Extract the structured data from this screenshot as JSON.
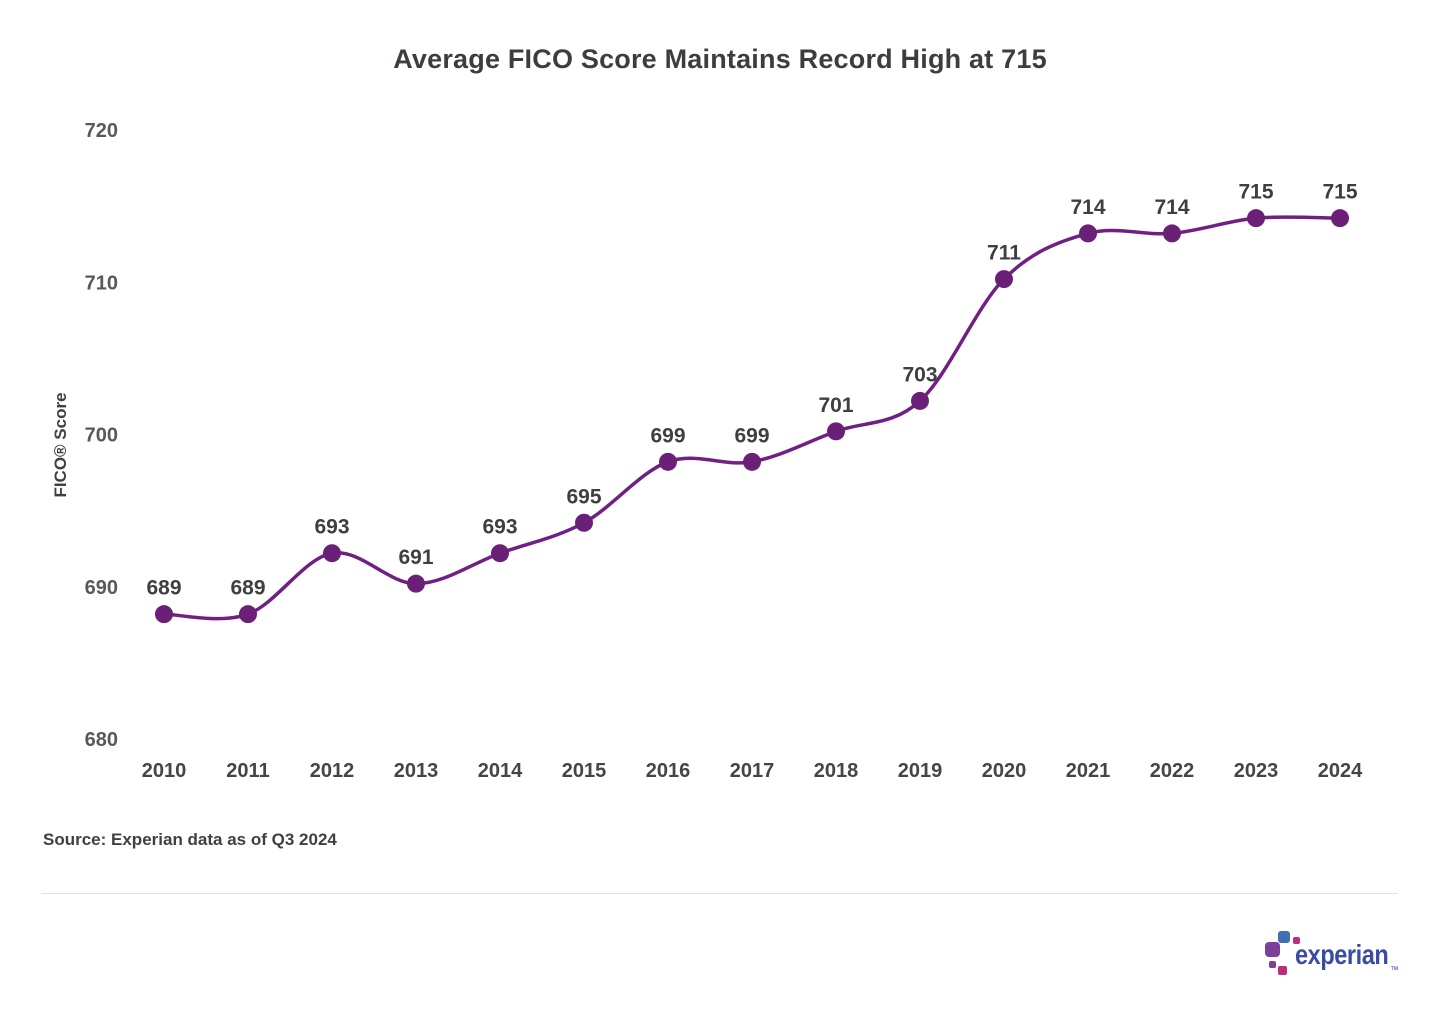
{
  "header": {
    "title": "Average FICO Score Maintains Record High at 715"
  },
  "chart_data": {
    "type": "line",
    "title": "Average FICO Score Maintains Record High at 715",
    "categories": [
      "2010",
      "2011",
      "2012",
      "2013",
      "2014",
      "2015",
      "2016",
      "2017",
      "2018",
      "2019",
      "2020",
      "2021",
      "2022",
      "2023",
      "2024"
    ],
    "values": [
      689,
      689,
      693,
      691,
      693,
      695,
      699,
      699,
      701,
      703,
      711,
      714,
      714,
      715,
      715
    ],
    "xlabel": "",
    "ylabel": "FICO® Score",
    "yticks": [
      680,
      690,
      700,
      710,
      720
    ],
    "ylim": [
      680,
      722
    ],
    "grid": false,
    "legend": false,
    "line_color": "#702082",
    "marker_color": "#6b2077",
    "data_label_color": "#3e3f41",
    "tick_label_color": "#58595b",
    "x_label_color": "#454549"
  },
  "footer": {
    "source": "Source: Experian data as of Q3 2024"
  },
  "logo": {
    "wordmark": "experian",
    "trademark": "™",
    "wordmark_color": "#3a4ba5",
    "square_colors": {
      "blue": "#406EB3",
      "purple": "#7D3F98",
      "magenta": "#BA2F7D"
    }
  }
}
